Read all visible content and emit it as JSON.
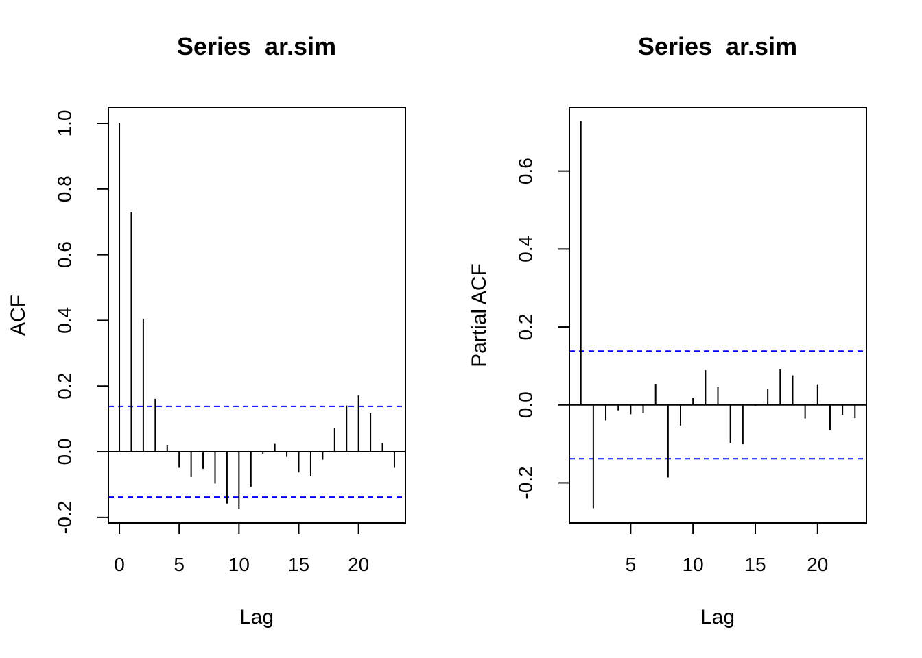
{
  "chart_data": [
    {
      "type": "bar",
      "subtype": "acf",
      "title": "Series  ar.sim",
      "xlabel": "Lag",
      "ylabel": "ACF",
      "xlim": [
        -0.92,
        23.92
      ],
      "ylim": [
        -0.217,
        1.048
      ],
      "xticks": [
        0,
        5,
        10,
        15,
        20
      ],
      "xtick_labels": [
        "0",
        "5",
        "10",
        "15",
        "20"
      ],
      "yticks": [
        -0.2,
        0.0,
        0.2,
        0.4,
        0.6,
        0.8,
        1.0
      ],
      "ytick_labels": [
        "-0.2",
        "0.0",
        "0.2",
        "0.4",
        "0.6",
        "0.8",
        "1.0"
      ],
      "ci": 0.138,
      "ci_color": "#0000ff",
      "bar_color": "#000000",
      "lags": [
        0,
        1,
        2,
        3,
        4,
        5,
        6,
        7,
        8,
        9,
        10,
        11,
        12,
        13,
        14,
        15,
        16,
        17,
        18,
        19,
        20,
        21,
        22,
        23
      ],
      "values": [
        1.0,
        0.729,
        0.405,
        0.161,
        0.021,
        -0.049,
        -0.077,
        -0.052,
        -0.097,
        -0.158,
        -0.175,
        -0.107,
        -0.006,
        0.024,
        -0.016,
        -0.063,
        -0.075,
        -0.024,
        0.073,
        0.141,
        0.171,
        0.117,
        0.026,
        -0.049
      ]
    },
    {
      "type": "bar",
      "subtype": "pacf",
      "title": "Series  ar.sim",
      "xlabel": "Lag",
      "ylabel": "Partial ACF",
      "xlim": [
        0.08,
        23.92
      ],
      "ylim": [
        -0.303,
        0.763
      ],
      "xticks": [
        5,
        10,
        15,
        20
      ],
      "xtick_labels": [
        "5",
        "10",
        "15",
        "20"
      ],
      "yticks": [
        -0.2,
        0.0,
        0.2,
        0.4,
        0.6
      ],
      "ytick_labels": [
        "-0.2",
        "0.0",
        "0.2",
        "0.4",
        "0.6"
      ],
      "ci": 0.138,
      "ci_color": "#0000ff",
      "bar_color": "#000000",
      "lags": [
        1,
        2,
        3,
        4,
        5,
        6,
        7,
        8,
        9,
        10,
        11,
        12,
        13,
        14,
        15,
        16,
        17,
        18,
        19,
        20,
        21,
        22,
        23
      ],
      "values": [
        0.729,
        -0.265,
        -0.04,
        -0.014,
        -0.024,
        -0.021,
        0.054,
        -0.186,
        -0.053,
        0.019,
        0.089,
        0.046,
        -0.098,
        -0.101,
        -0.002,
        0.04,
        0.091,
        0.076,
        -0.035,
        0.053,
        -0.065,
        -0.025,
        -0.034
      ]
    }
  ]
}
